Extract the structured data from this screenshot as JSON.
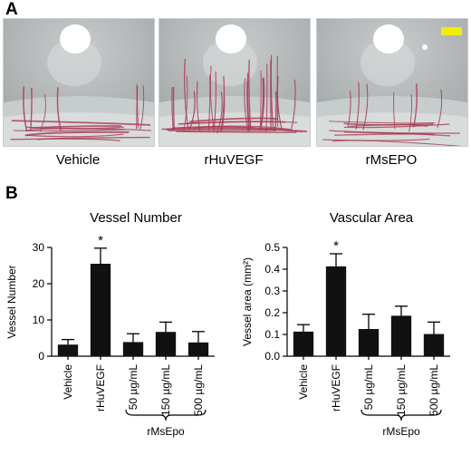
{
  "panel_a": {
    "letter": "A",
    "images": [
      {
        "caption": "Vehicle",
        "density": 0.25
      },
      {
        "caption": "rHuVEGF",
        "density": 1.0
      },
      {
        "caption": "rMsEPO",
        "density": 0.28
      }
    ],
    "scale_bar_color": "#f2ee00",
    "vessel_color": "#a83a55"
  },
  "panel_b": {
    "letter": "B",
    "bracket_label": "rMsEpo"
  },
  "chart_data": [
    {
      "type": "bar",
      "title": "Vessel Number",
      "ylabel": "Vessel Number",
      "categories": [
        "Vehicle",
        "rHuVEGF",
        "50 µg/mL",
        "150 µg/mL",
        "500 µg/mL"
      ],
      "values": [
        3.2,
        25.5,
        3.9,
        6.7,
        3.8
      ],
      "errors": [
        1.4,
        4.3,
        2.3,
        2.7,
        3.0
      ],
      "significance": [
        "",
        "*",
        "",
        "",
        ""
      ],
      "ylim": [
        0,
        30
      ],
      "yticks": [
        0,
        10,
        20,
        30
      ],
      "ytick_labels": [
        "0",
        "10",
        "20",
        "30"
      ],
      "bar_color": "#111111"
    },
    {
      "type": "bar",
      "title": "Vascular Area",
      "ylabel": "Vessel area (mm²)",
      "categories": [
        "Vehicle",
        "rHuVEGF",
        "50 µg/mL",
        "150 µg/mL",
        "500 µg/mL"
      ],
      "values": [
        0.113,
        0.413,
        0.125,
        0.186,
        0.102
      ],
      "errors": [
        0.032,
        0.058,
        0.068,
        0.044,
        0.055
      ],
      "significance": [
        "",
        "*",
        "",
        "",
        ""
      ],
      "ylim": [
        0,
        0.5
      ],
      "yticks": [
        0,
        0.1,
        0.2,
        0.3,
        0.4,
        0.5
      ],
      "ytick_labels": [
        "0.0",
        "0.1",
        "0.2",
        "0.3",
        "0.4",
        "0.5"
      ],
      "bar_color": "#111111"
    }
  ]
}
